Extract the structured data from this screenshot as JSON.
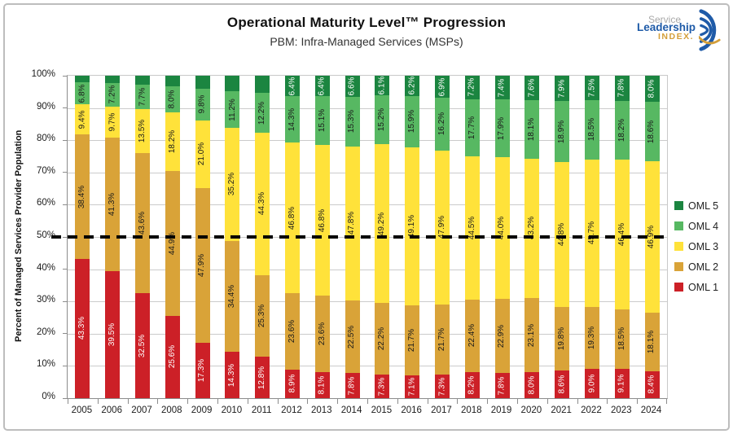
{
  "logo": {
    "word1": "Service",
    "word2": "Leadership",
    "word3": "INDEX.",
    "blue": "#1f5ba8",
    "gold": "#d49f3a"
  },
  "chart_data": {
    "type": "bar",
    "stacked": true,
    "title": "Operational Maturity Level™ Progression",
    "subtitle": "PBM: Infra-Managed Services (MSPs)",
    "xlabel": "",
    "ylabel": "Percent of Managed Services Provider Population",
    "ylim": [
      0,
      100
    ],
    "ytick_step": 10,
    "ytick_labels": [
      "0%",
      "10%",
      "20%",
      "30%",
      "40%",
      "50%",
      "60%",
      "70%",
      "80%",
      "90%",
      "100%"
    ],
    "grid": true,
    "legend_position": "right",
    "legend_order": [
      "OML 5",
      "OML 4",
      "OML 3",
      "OML 2",
      "OML 1"
    ],
    "reference_line": {
      "value": 50,
      "style": "dashed",
      "color": "#000000"
    },
    "categories": [
      "2005",
      "2006",
      "2007",
      "2008",
      "2009",
      "2010",
      "2011",
      "2012",
      "2013",
      "2014",
      "2015",
      "2016",
      "2017",
      "2018",
      "2019",
      "2020",
      "2021",
      "2022",
      "2023",
      "2024"
    ],
    "series": [
      {
        "name": "OML 1",
        "color": "#cc2027",
        "label_color": "#ffffff",
        "values": [
          43.3,
          39.5,
          32.5,
          25.6,
          17.3,
          14.3,
          12.8,
          8.9,
          8.1,
          7.8,
          7.3,
          7.1,
          7.3,
          8.2,
          7.8,
          8.0,
          8.6,
          9.0,
          9.1,
          8.4
        ],
        "labels": [
          "43.3%",
          "39.5%",
          "32.5%",
          "25.6%",
          "17.3%",
          "14.3%",
          "12.8%",
          "8.9%",
          "8.1%",
          "7.8%",
          "7.3%",
          "7.1%",
          "7.3%",
          "8.2%",
          "7.8%",
          "8.0%",
          "8.6%",
          "9.0%",
          "9.1%",
          "8.4%"
        ]
      },
      {
        "name": "OML 2",
        "color": "#d9a338",
        "label_color": "#1a1a1a",
        "values": [
          38.4,
          41.3,
          43.6,
          44.9,
          47.9,
          34.4,
          25.3,
          23.6,
          23.6,
          22.5,
          22.2,
          21.7,
          21.7,
          22.4,
          22.9,
          23.1,
          19.8,
          19.3,
          18.5,
          18.1
        ],
        "labels": [
          "38.4%",
          "41.3%",
          "43.6%",
          "44.9%",
          "47.9%",
          "34.4%",
          "25.3%",
          "23.6%",
          "23.6%",
          "22.5%",
          "22.2%",
          "21.7%",
          "21.7%",
          "22.4%",
          "22.9%",
          "23.1%",
          "19.8%",
          "19.3%",
          "18.5%",
          "18.1%"
        ]
      },
      {
        "name": "OML 3",
        "color": "#ffe23a",
        "label_color": "#1a1a1a",
        "values": [
          9.4,
          9.7,
          13.5,
          18.2,
          21.0,
          35.2,
          44.3,
          46.8,
          46.8,
          47.8,
          49.2,
          49.1,
          47.9,
          44.5,
          44.0,
          43.2,
          44.8,
          45.7,
          46.4,
          46.9
        ],
        "labels": [
          "9.4%",
          "9.7%",
          "13.5%",
          "18.2%",
          "21.0%",
          "35.2%",
          "44.3%",
          "46.8%",
          "46.8%",
          "47.8%",
          "49.2%",
          "49.1%",
          "47.9%",
          "44.5%",
          "44.0%",
          "43.2%",
          "44.8%",
          "45.7%",
          "46.4%",
          "46.9%"
        ]
      },
      {
        "name": "OML 4",
        "color": "#57b862",
        "label_color": "#1a1a1a",
        "values": [
          6.8,
          7.2,
          7.7,
          8.0,
          9.8,
          11.2,
          12.2,
          14.3,
          15.1,
          15.3,
          15.2,
          15.9,
          16.2,
          17.7,
          17.9,
          18.1,
          18.9,
          18.5,
          18.2,
          18.6
        ],
        "labels": [
          "6.8%",
          "7.2%",
          "7.7%",
          "8.0%",
          "9.8%",
          "11.2%",
          "12.2%",
          "14.3%",
          "15.1%",
          "15.3%",
          "15.2%",
          "15.9%",
          "16.2%",
          "17.7%",
          "17.9%",
          "18.1%",
          "18.9%",
          "18.5%",
          "18.2%",
          "18.6%"
        ]
      },
      {
        "name": "OML 5",
        "color": "#1b8540",
        "label_color": "#ffffff",
        "values": [
          2.1,
          2.3,
          2.7,
          3.3,
          4.0,
          4.9,
          5.4,
          6.4,
          6.4,
          6.6,
          6.1,
          6.2,
          6.9,
          7.2,
          7.4,
          7.6,
          7.9,
          7.5,
          7.8,
          8.0
        ],
        "labels": [
          "",
          "",
          "",
          "",
          "",
          "",
          "",
          "6.4%",
          "6.4%",
          "6.6%",
          "6.1%",
          "6.2%",
          "6.9%",
          "7.2%",
          "7.4%",
          "7.6%",
          "7.9%",
          "7.5%",
          "7.8%",
          "8.0%"
        ]
      }
    ]
  }
}
